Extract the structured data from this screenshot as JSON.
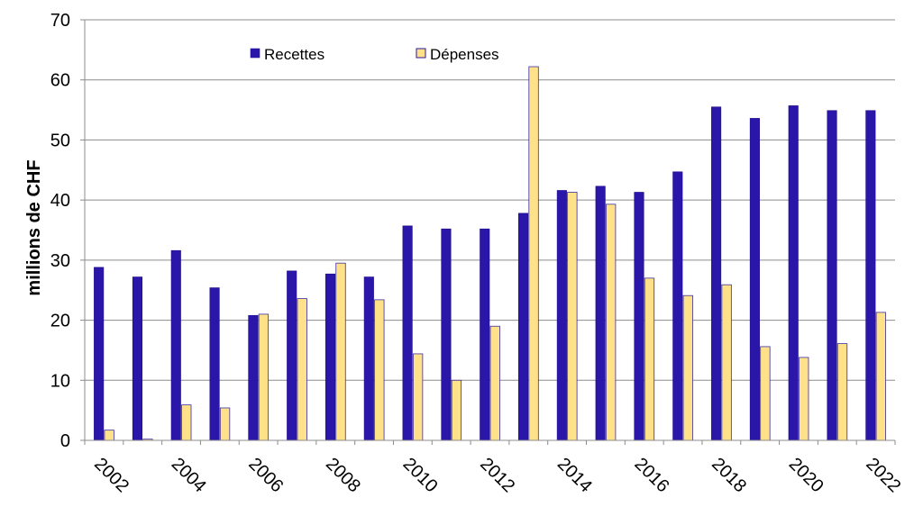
{
  "chart_data": {
    "type": "bar",
    "title": "",
    "xlabel": "",
    "ylabel": "millions de CHF",
    "ylim": [
      0,
      70
    ],
    "yticks": [
      0,
      10,
      20,
      30,
      40,
      50,
      60,
      70
    ],
    "grid": true,
    "legend_placement": "top",
    "categories": [
      "2002",
      "2003",
      "2004",
      "2005",
      "2006",
      "2007",
      "2008",
      "2009",
      "2010",
      "2011",
      "2012",
      "2013",
      "2014",
      "2015",
      "2016",
      "2017",
      "2018",
      "2019",
      "2020",
      "2021",
      "2022"
    ],
    "xtick_labels": [
      "2002",
      "",
      "2004",
      "",
      "2006",
      "",
      "2008",
      "",
      "2010",
      "",
      "2012",
      "",
      "2014",
      "",
      "2016",
      "",
      "2018",
      "",
      "2020",
      "",
      "2022"
    ],
    "series": [
      {
        "name": "Recettes",
        "color": "#2a16a8",
        "values": [
          28.8,
          27.2,
          31.6,
          25.4,
          20.8,
          28.2,
          27.7,
          27.2,
          35.7,
          35.2,
          35.2,
          37.8,
          41.6,
          42.3,
          41.3,
          44.7,
          55.5,
          53.6,
          55.7,
          54.9,
          54.9
        ]
      },
      {
        "name": "Dépenses",
        "color": "#ffe18a",
        "values": [
          1.7,
          0.2,
          5.9,
          5.4,
          21.0,
          23.6,
          29.5,
          23.4,
          14.4,
          10.0,
          19.0,
          62.2,
          41.3,
          39.3,
          27.0,
          24.1,
          25.9,
          15.6,
          13.8,
          16.1,
          21.3
        ]
      }
    ]
  }
}
